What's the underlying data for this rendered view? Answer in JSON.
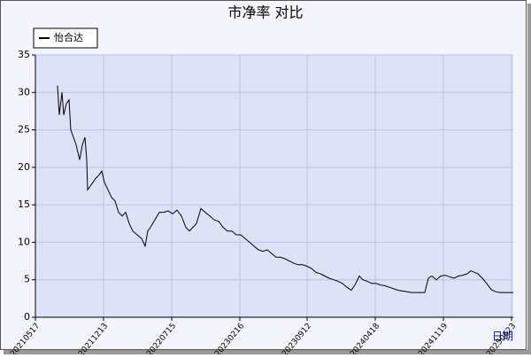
{
  "chart_data": {
    "type": "line",
    "title": "市净率  对比",
    "x_label": "日期",
    "x": [
      25,
      27,
      30,
      32,
      35,
      38,
      40,
      43,
      46,
      50,
      53,
      56,
      58,
      59,
      62,
      65,
      68,
      72,
      75,
      78,
      82,
      86,
      90,
      94,
      98,
      102,
      106,
      110,
      115,
      120,
      124,
      127,
      130,
      135,
      140,
      145,
      150,
      155,
      160,
      165,
      170,
      174,
      178,
      182,
      187,
      192,
      197,
      202,
      207,
      212,
      217,
      222,
      227,
      232,
      237,
      242,
      247,
      252,
      257,
      262,
      267,
      272,
      277,
      282,
      287,
      292,
      297,
      302,
      307,
      312,
      317,
      322,
      327,
      332,
      337,
      342,
      347,
      352,
      357,
      362,
      366,
      370,
      375,
      380,
      385,
      390,
      395,
      400,
      405,
      410,
      415,
      420,
      425,
      430,
      435,
      440,
      444,
      448,
      453,
      458,
      463,
      468,
      473,
      478,
      483,
      488,
      492,
      496,
      500,
      505,
      510,
      515,
      520,
      525,
      530,
      535,
      540
    ],
    "series": [
      {
        "name": "怡合达",
        "color": "#000000",
        "values": [
          30.9,
          27,
          30,
          27,
          28.5,
          29,
          25,
          24,
          23,
          21,
          23,
          24,
          21,
          17,
          17.5,
          18,
          18.5,
          19,
          19.5,
          18,
          17,
          16,
          15.5,
          14,
          13.5,
          14,
          12.5,
          11.5,
          11,
          10.5,
          9.5,
          11.5,
          12,
          13,
          14,
          14,
          14.2,
          13.8,
          14.3,
          13.5,
          12,
          11.5,
          12,
          12.5,
          14.5,
          14,
          13.5,
          13,
          12.8,
          12,
          11.5,
          11.5,
          11,
          11,
          10.5,
          10,
          9.5,
          9,
          8.8,
          9,
          8.5,
          8,
          8,
          7.8,
          7.5,
          7.2,
          7,
          7,
          6.8,
          6.5,
          6,
          5.8,
          5.5,
          5.2,
          5,
          4.8,
          4.5,
          4,
          3.6,
          4.5,
          5.5,
          5,
          4.8,
          4.5,
          4.5,
          4.3,
          4.2,
          4,
          3.8,
          3.6,
          3.5,
          3.4,
          3.3,
          3.3,
          3.3,
          3.3,
          5.2,
          5.5,
          5,
          5.5,
          5.6,
          5.4,
          5.2,
          5.5,
          5.6,
          5.8,
          6.2,
          6,
          5.8,
          5.2,
          4.5,
          3.7,
          3.4,
          3.3,
          3.3,
          3.3,
          3.3
        ]
      }
    ],
    "xlim": [
      0,
      540
    ],
    "xticks": [
      {
        "value": 0,
        "label": "20210517"
      },
      {
        "value": 77,
        "label": "20211213"
      },
      {
        "value": 154,
        "label": "20220715"
      },
      {
        "value": 231,
        "label": "20230216"
      },
      {
        "value": 307,
        "label": "20230912"
      },
      {
        "value": 384,
        "label": "20240418"
      },
      {
        "value": 461,
        "label": "20241119"
      },
      {
        "value": 538,
        "label": "20250623"
      }
    ],
    "ylim": [
      0,
      35
    ],
    "yticks": [
      0,
      5,
      10,
      15,
      20,
      25,
      30,
      35
    ],
    "grid": true,
    "legend": "top-left"
  }
}
